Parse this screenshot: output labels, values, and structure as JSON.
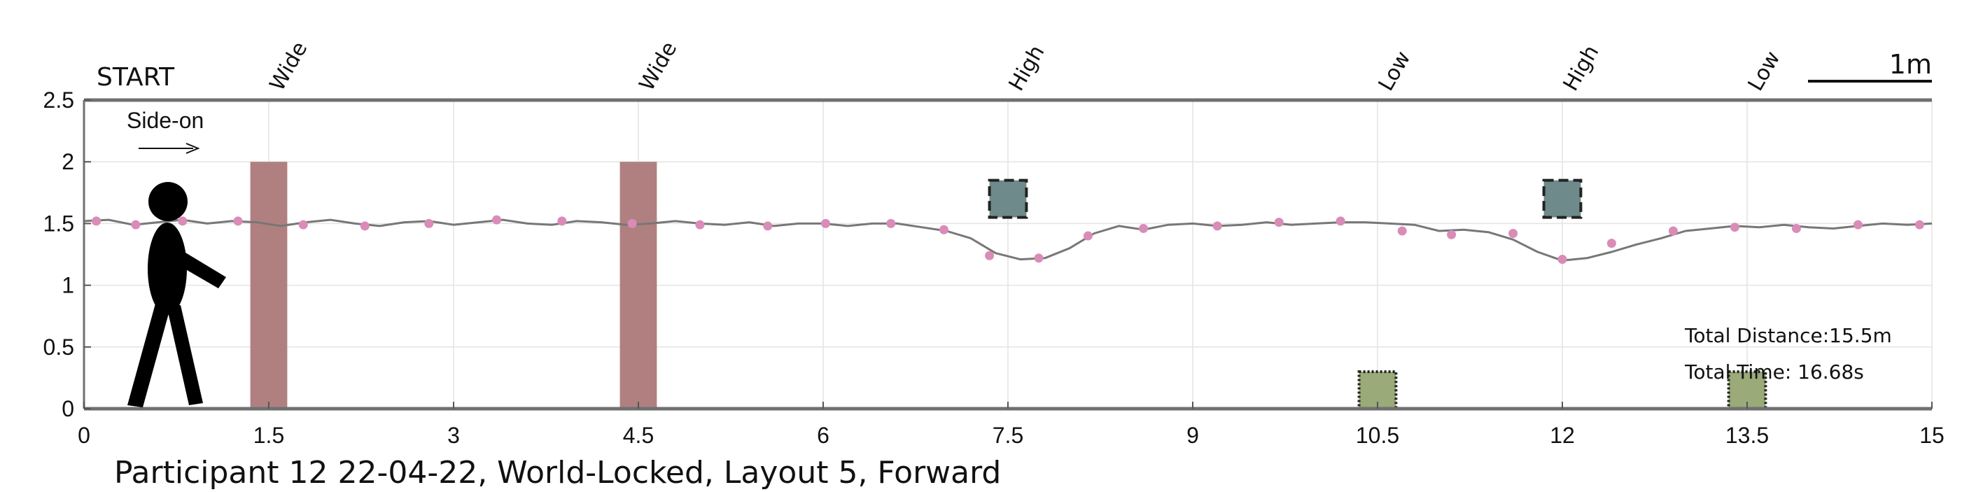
{
  "chart_data": {
    "type": "line",
    "title": "Participant 12 22-04-22, World-Locked, Layout 5, Forward",
    "xlabel": "",
    "ylabel": "",
    "xlim": [
      0,
      15
    ],
    "ylim": [
      0,
      2.5
    ],
    "x_ticks": [
      0,
      1.5,
      3,
      4.5,
      6,
      7.5,
      9,
      10.5,
      12,
      13.5,
      15
    ],
    "x_tick_labels": [
      "0",
      "1.5",
      "3",
      "4.5",
      "6",
      "7.5",
      "9",
      "10.5",
      "12",
      "13.5",
      "15"
    ],
    "y_ticks": [
      0,
      0.5,
      1,
      1.5,
      2,
      2.5
    ],
    "y_tick_labels": [
      "0",
      "0.5",
      "1",
      "1.5",
      "2",
      "2.5"
    ],
    "grid": true,
    "start_label": "START",
    "direction_label": "Side-on",
    "scale_label": "1m",
    "scale_length_m": 1,
    "total_distance_label": "Total Distance:15.5m",
    "total_time_label": "Total Time: 16.68s",
    "obstacles": [
      {
        "label": "Wide",
        "kind": "wall",
        "x_from": 1.35,
        "x_to": 1.65,
        "y_from": 0,
        "y_to": 2.0,
        "color": "#b08080"
      },
      {
        "label": "Wide",
        "kind": "wall",
        "x_from": 4.35,
        "x_to": 4.65,
        "y_from": 0,
        "y_to": 2.0,
        "color": "#b08080"
      },
      {
        "label": "High",
        "kind": "high-block",
        "x_from": 7.35,
        "x_to": 7.65,
        "y_from": 1.55,
        "y_to": 1.85,
        "color": "#6e8a8a"
      },
      {
        "label": "Low",
        "kind": "low-block",
        "x_from": 10.35,
        "x_to": 10.65,
        "y_from": 0,
        "y_to": 0.3,
        "color": "#9aaa78"
      },
      {
        "label": "High",
        "kind": "high-block",
        "x_from": 11.85,
        "x_to": 12.15,
        "y_from": 1.55,
        "y_to": 1.85,
        "color": "#6e8a8a"
      },
      {
        "label": "Low",
        "kind": "low-block",
        "x_from": 13.35,
        "x_to": 13.65,
        "y_from": 0,
        "y_to": 0.3,
        "color": "#9aaa78"
      }
    ],
    "series": [
      {
        "type": "line",
        "color": "#777777",
        "x": [
          0,
          0.2,
          0.4,
          0.6,
          0.8,
          1.0,
          1.2,
          1.4,
          1.6,
          1.8,
          2.0,
          2.2,
          2.4,
          2.6,
          2.8,
          3.0,
          3.2,
          3.4,
          3.6,
          3.8,
          4.0,
          4.2,
          4.4,
          4.6,
          4.8,
          5.0,
          5.2,
          5.4,
          5.6,
          5.8,
          6.0,
          6.2,
          6.4,
          6.6,
          6.8,
          7.0,
          7.2,
          7.4,
          7.6,
          7.8,
          8.0,
          8.2,
          8.4,
          8.6,
          8.8,
          9.0,
          9.2,
          9.4,
          9.6,
          9.8,
          10.0,
          10.2,
          10.4,
          10.6,
          10.8,
          11.0,
          11.2,
          11.4,
          11.6,
          11.8,
          12.0,
          12.2,
          12.4,
          12.6,
          12.8,
          13.0,
          13.2,
          13.4,
          13.6,
          13.8,
          14.0,
          14.2,
          14.4,
          14.6,
          14.8,
          15.0
        ],
        "y": [
          1.52,
          1.53,
          1.49,
          1.51,
          1.53,
          1.5,
          1.52,
          1.51,
          1.48,
          1.51,
          1.53,
          1.5,
          1.48,
          1.51,
          1.52,
          1.49,
          1.51,
          1.53,
          1.5,
          1.49,
          1.52,
          1.51,
          1.49,
          1.5,
          1.52,
          1.5,
          1.49,
          1.51,
          1.48,
          1.5,
          1.5,
          1.48,
          1.5,
          1.5,
          1.47,
          1.44,
          1.38,
          1.26,
          1.21,
          1.22,
          1.3,
          1.42,
          1.48,
          1.45,
          1.49,
          1.5,
          1.48,
          1.49,
          1.51,
          1.49,
          1.5,
          1.51,
          1.51,
          1.5,
          1.49,
          1.44,
          1.45,
          1.43,
          1.37,
          1.27,
          1.2,
          1.22,
          1.27,
          1.33,
          1.38,
          1.44,
          1.46,
          1.48,
          1.47,
          1.49,
          1.47,
          1.46,
          1.48,
          1.5,
          1.49,
          1.5
        ]
      },
      {
        "type": "scatter",
        "color": "#d98cb8",
        "x": [
          0.1,
          0.42,
          0.8,
          1.25,
          1.78,
          2.28,
          2.8,
          3.35,
          3.88,
          4.45,
          5.0,
          5.55,
          6.02,
          6.55,
          6.98,
          7.35,
          7.75,
          8.15,
          8.6,
          9.2,
          9.7,
          10.2,
          10.7,
          11.1,
          11.6,
          12.0,
          12.4,
          12.9,
          13.4,
          13.9,
          14.4,
          14.9
        ],
        "y": [
          1.52,
          1.49,
          1.52,
          1.52,
          1.49,
          1.48,
          1.5,
          1.53,
          1.52,
          1.5,
          1.49,
          1.48,
          1.5,
          1.5,
          1.45,
          1.24,
          1.22,
          1.4,
          1.46,
          1.48,
          1.51,
          1.52,
          1.44,
          1.41,
          1.42,
          1.21,
          1.34,
          1.44,
          1.47,
          1.46,
          1.49,
          1.49
        ]
      }
    ]
  }
}
